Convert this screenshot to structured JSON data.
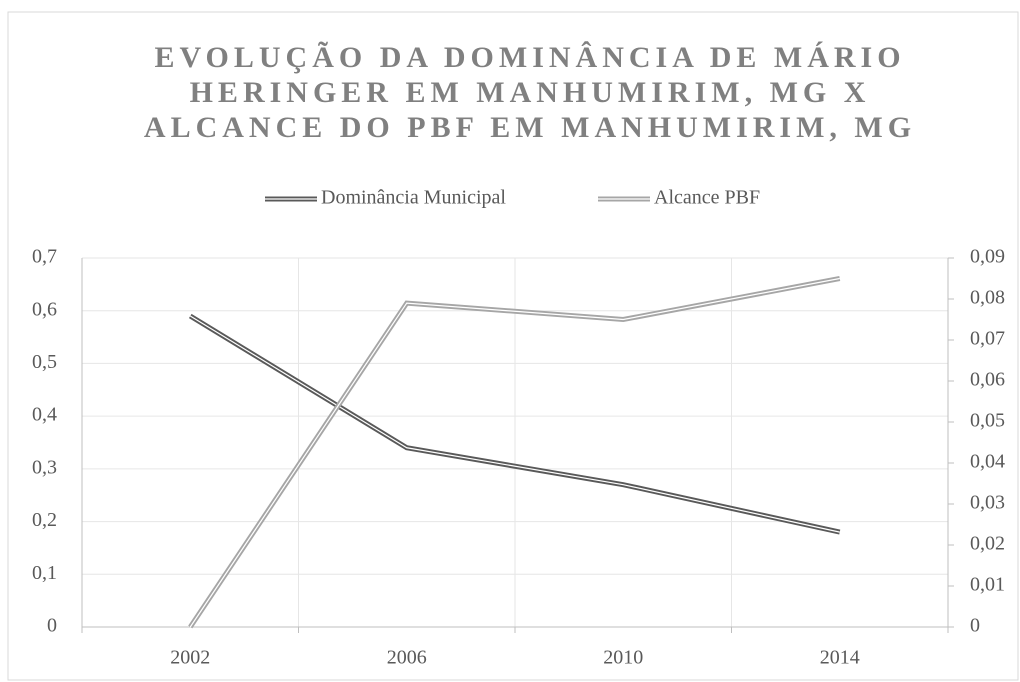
{
  "chart_data": {
    "type": "line",
    "title": [
      "EVOLUÇÃO DA DOMINÂNCIA DE MÁRIO",
      "HERINGER EM MANHUMIRIM, MG X",
      "ALCANCE DO PBF EM MANHUMIRIM, MG"
    ],
    "categories": [
      "2002",
      "2006",
      "2010",
      "2014"
    ],
    "series": [
      {
        "name": "Dominância Municipal",
        "color": "#595959",
        "values": [
          0.59,
          0.34,
          0.27,
          0.18
        ]
      },
      {
        "name": "Alcance PBF",
        "color": "#a6a6a6",
        "axis": "y2",
        "values": [
          0,
          0.079,
          0.075,
          0.085
        ]
      }
    ],
    "ylim": [
      0,
      0.7
    ],
    "yticks": [
      0,
      {
        "value": 0.1,
        "label": "0,1"
      },
      {
        "value": 0.2,
        "label": "0,2"
      },
      {
        "value": 0.3,
        "label": "0,3"
      },
      {
        "value": 0.4,
        "label": "0,4"
      },
      {
        "value": 0.5,
        "label": "0,5"
      },
      {
        "value": 0.6,
        "label": "0,6"
      },
      {
        "value": 0.7,
        "label": "0,7"
      }
    ],
    "y2lim": [
      0,
      0.09
    ],
    "y2ticks": [
      0,
      {
        "value": 0.01,
        "label": "0,01"
      },
      {
        "value": 0.02,
        "label": "0,02"
      },
      {
        "value": 0.03,
        "label": "0,03"
      },
      {
        "value": 0.04,
        "label": "0,04"
      },
      {
        "value": 0.05,
        "label": "0,05"
      },
      {
        "value": 0.06,
        "label": "0,06"
      },
      {
        "value": 0.07,
        "label": "0,07"
      },
      {
        "value": 0.08,
        "label": "0,08"
      },
      {
        "value": 0.09,
        "label": "0,09"
      }
    ],
    "grid": true,
    "legend": "top"
  }
}
